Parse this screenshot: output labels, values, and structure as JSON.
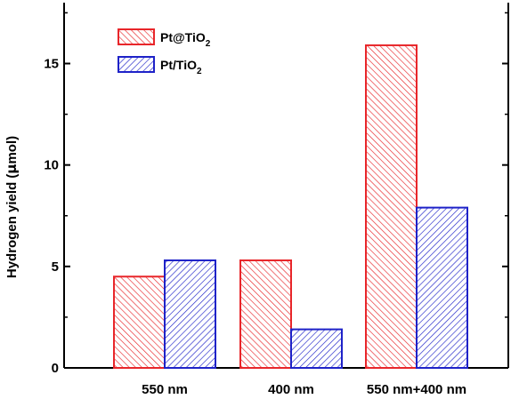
{
  "chart_data": {
    "type": "bar",
    "categories": [
      "550 nm",
      "400 nm",
      "550 nm+400 nm"
    ],
    "series": [
      {
        "name": "Pt@TiO2",
        "name_main": "Pt@TiO",
        "name_sub": "2",
        "color": "#e8262a",
        "values": [
          4.5,
          5.3,
          15.9
        ]
      },
      {
        "name": "Pt/TiO2",
        "name_main": "Pt/TiO",
        "name_sub": "2",
        "color": "#1e22c8",
        "values": [
          5.3,
          1.9,
          7.9
        ]
      }
    ],
    "ylabel_prefix": "Hydrogen yield (",
    "ylabel_mu": "μ",
    "ylabel_suffix": "mol)",
    "ylim": [
      0,
      18
    ],
    "yticks": [
      0,
      5,
      10,
      15
    ],
    "legend_position": "top-left",
    "grid": false,
    "hatch": [
      "diagonal-up",
      "diagonal-down"
    ]
  }
}
